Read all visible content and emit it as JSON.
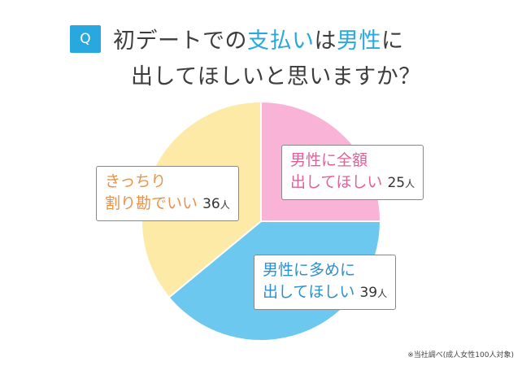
{
  "header": {
    "badge": "Q",
    "line1_pre": "初デートでの",
    "line1_hl1": "支払い",
    "line1_mid": "は",
    "line1_hl2": "男性",
    "line1_post": "に",
    "line2": "出してほしいと思いますか？"
  },
  "chart_data": {
    "type": "pie",
    "title": "",
    "slices": [
      {
        "label_line1": "男性に全額",
        "label_line2": "出してほしい",
        "value": 25,
        "unit": "人",
        "color": "#f9b3d6"
      },
      {
        "label_line1": "男性に多めに",
        "label_line2": "出してほしい",
        "value": 39,
        "unit": "人",
        "color": "#6cc8ee"
      },
      {
        "label_line1": "きっちり",
        "label_line2": "割り勘でいい",
        "value": 36,
        "unit": "人",
        "color": "#fdeaa6"
      }
    ]
  },
  "footnote": "※当社調べ(成人女性100人対象)"
}
